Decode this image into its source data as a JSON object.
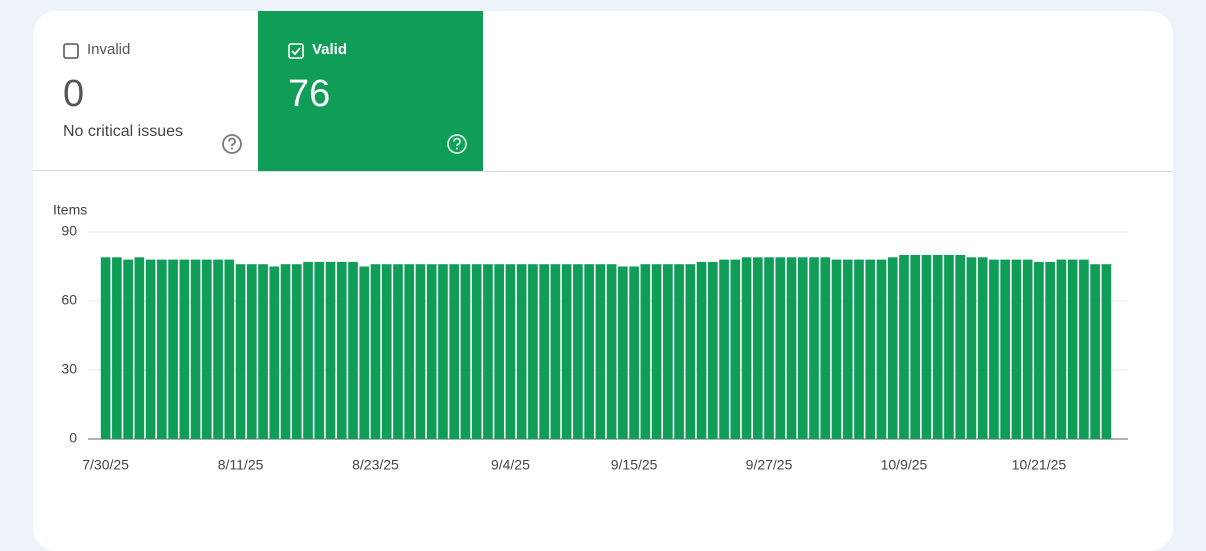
{
  "tabs": [
    {
      "label": "Invalid",
      "value": 0,
      "subtitle": "No critical issues"
    },
    {
      "label": "Valid",
      "value": 76
    }
  ],
  "chart_data": {
    "type": "bar",
    "y_label": "Items",
    "categories": [
      "7/30/25",
      null,
      null,
      null,
      null,
      null,
      null,
      null,
      null,
      null,
      null,
      null,
      "8/11/25",
      null,
      null,
      null,
      null,
      null,
      null,
      null,
      null,
      null,
      null,
      null,
      "8/23/25",
      null,
      null,
      null,
      null,
      null,
      null,
      null,
      null,
      null,
      null,
      null,
      "9/4/25",
      null,
      null,
      null,
      null,
      null,
      null,
      null,
      null,
      null,
      null,
      "9/15/25",
      null,
      null,
      null,
      null,
      null,
      null,
      null,
      null,
      null,
      null,
      null,
      "9/27/25",
      null,
      null,
      null,
      null,
      null,
      null,
      null,
      null,
      null,
      null,
      null,
      "10/9/25",
      null,
      null,
      null,
      null,
      null,
      null,
      null,
      null,
      null,
      null,
      null,
      "10/21/25",
      null,
      null,
      null,
      null,
      null,
      null
    ],
    "values": [
      79,
      79,
      78,
      79,
      78,
      78,
      78,
      78,
      78,
      78,
      78,
      78,
      76,
      76,
      76,
      75,
      76,
      76,
      77,
      77,
      77,
      77,
      77,
      75,
      76,
      76,
      76,
      76,
      76,
      76,
      76,
      76,
      76,
      76,
      76,
      76,
      76,
      76,
      76,
      76,
      76,
      76,
      76,
      76,
      76,
      76,
      75,
      75,
      76,
      76,
      76,
      76,
      76,
      77,
      77,
      78,
      78,
      79,
      79,
      79,
      79,
      79,
      79,
      79,
      79,
      78,
      78,
      78,
      78,
      78,
      79,
      80,
      80,
      80,
      80,
      80,
      80,
      79,
      79,
      78,
      78,
      78,
      78,
      77,
      77,
      78,
      78,
      78,
      76,
      76
    ],
    "color": "#0f9d58",
    "ylim": [
      0,
      90
    ],
    "yticks": [
      0,
      30,
      60,
      90
    ],
    "grid": true
  }
}
